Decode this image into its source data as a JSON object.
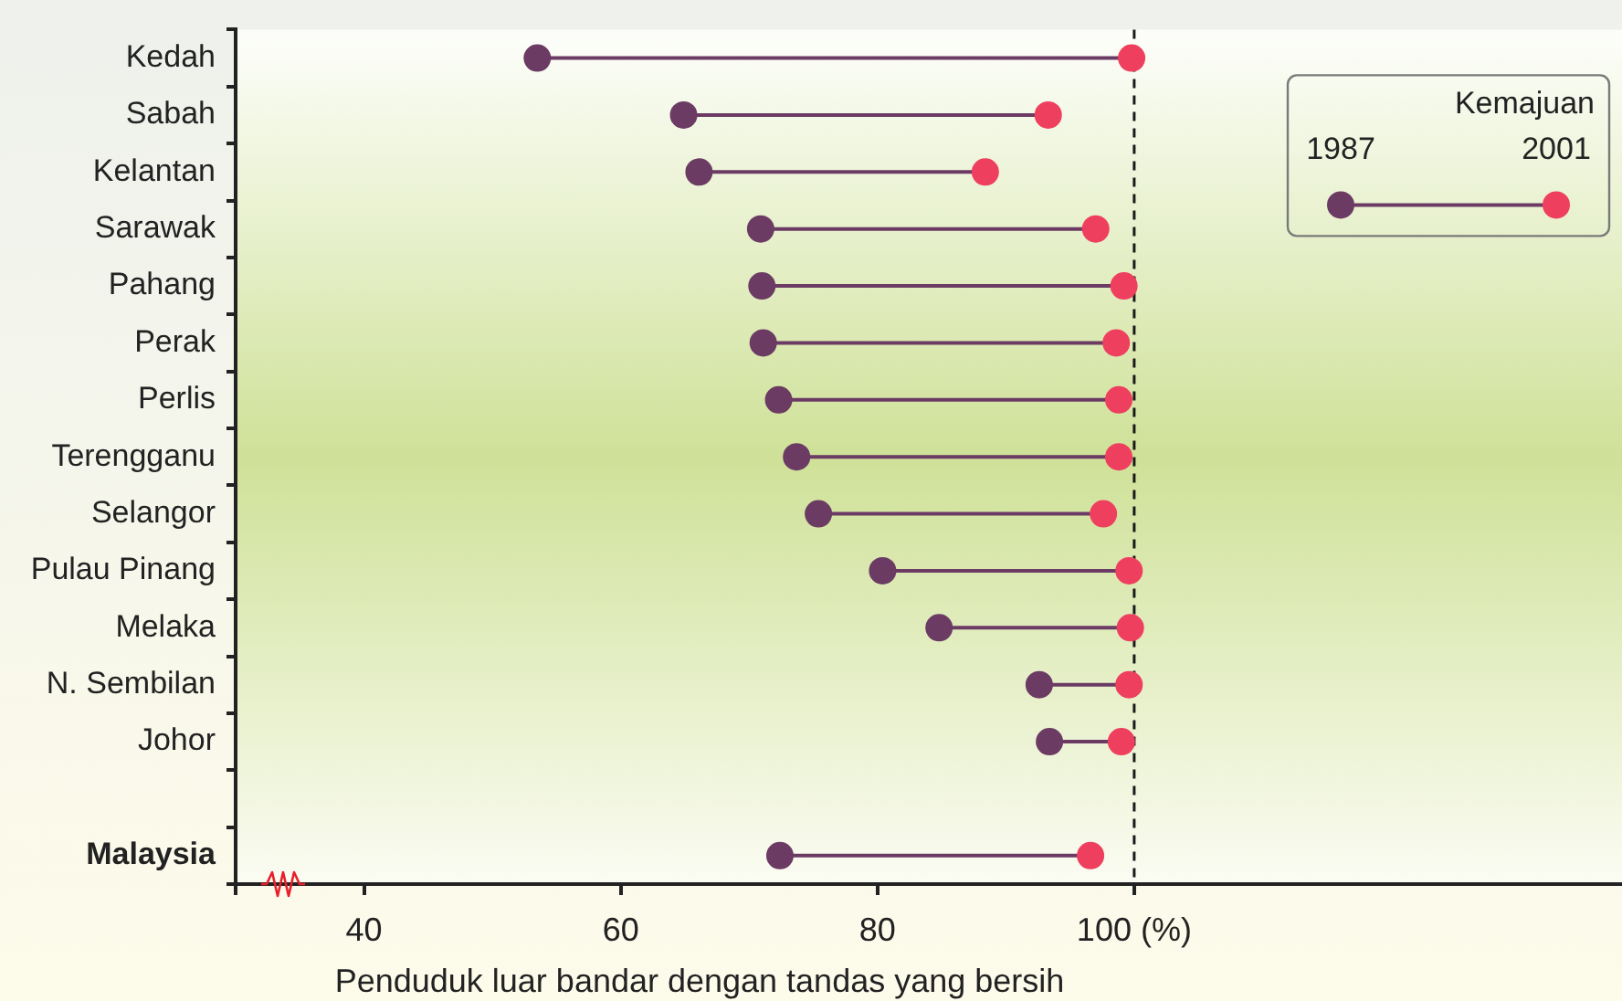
{
  "chart_data": {
    "type": "scatter",
    "orientation": "horizontal",
    "categories": [
      "Kedah",
      "Sabah",
      "Kelantan",
      "Sarawak",
      "Pahang",
      "Perak",
      "Perlis",
      "Terengganu",
      "Selangor",
      "Pulau Pinang",
      "Melaka",
      "N. Sembilan",
      "Johor",
      null,
      "Malaysia"
    ],
    "series": [
      {
        "name": "1987",
        "color": "#6b3b64",
        "values": [
          53.5,
          64.9,
          66.1,
          70.9,
          71.0,
          71.1,
          72.3,
          73.7,
          75.4,
          80.4,
          84.8,
          92.6,
          93.4,
          null,
          72.4
        ]
      },
      {
        "name": "2001",
        "color": "#ef3f5f",
        "values": [
          99.8,
          93.3,
          88.4,
          97.0,
          99.2,
          98.6,
          98.8,
          98.8,
          97.6,
          99.6,
          99.7,
          99.6,
          99.0,
          null,
          96.6
        ]
      }
    ],
    "xlim": [
      30,
      138
    ],
    "xticks": [
      {
        "value": 30,
        "label": null
      },
      40,
      60,
      80,
      {
        "value": 100,
        "label": "100 (%)"
      }
    ],
    "xlabel": "Penduduk luar bandar dengan tandas yang bersih",
    "legend": "top right",
    "legend_title": "Kemajuan",
    "marker": "circle",
    "ref_lines": [
      {
        "axis": "x",
        "value": 100,
        "color": "#1a1a1a",
        "line_style": "dashed"
      }
    ]
  }
}
